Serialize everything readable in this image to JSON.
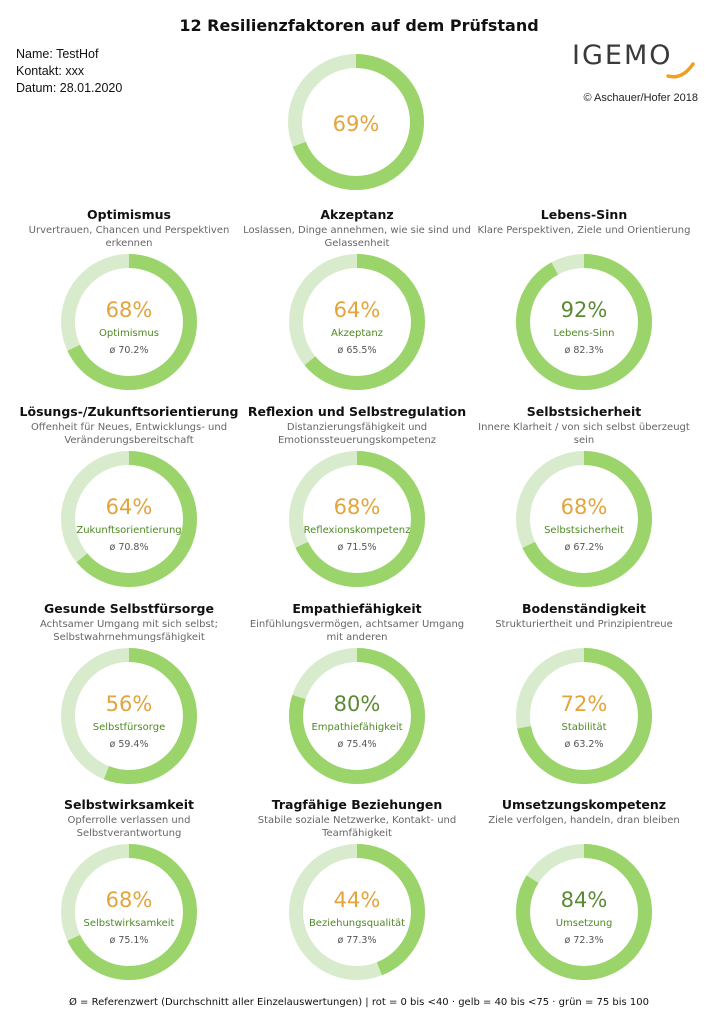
{
  "title": "12 Resilienzfaktoren auf dem Prüfstand",
  "meta": {
    "name": "Name: TestHof",
    "contact": "Kontakt: xxx",
    "date": "Datum: 28.01.2020"
  },
  "logo_text": "IGEMO",
  "copyright": "© Aschauer/Hofer 2018",
  "footer": "Ø = Referenzwert (Durchschnitt aller Einzelauswertungen) | rot = 0 bis <40 · gelb = 40 bis <75 · grün = 75 bis 100",
  "colors": {
    "ring_fill": "#9bd46a",
    "ring_track": "#d8eccd",
    "yellow": "#e2a43c",
    "green_text": "#5a8a36",
    "label_green": "#4e8a22",
    "avg_gray": "#555555"
  },
  "chart_data": {
    "type": "donut",
    "overall": {
      "label": "69%",
      "value": 69,
      "status": "yellow"
    },
    "factors": [
      {
        "title": "Optimismus",
        "description": "Urvertrauen, Chancen und Perspektiven erkennen",
        "value": 68,
        "label": "68%",
        "short": "Optimismus",
        "avg": "ø 70.2%",
        "status": "yellow"
      },
      {
        "title": "Akzeptanz",
        "description": "Loslassen, Dinge annehmen, wie sie sind und Gelassenheit",
        "value": 64,
        "label": "64%",
        "short": "Akzeptanz",
        "avg": "ø 65.5%",
        "status": "yellow"
      },
      {
        "title": "Lebens-Sinn",
        "description": "Klare Perspektiven, Ziele und Orientierung",
        "value": 92,
        "label": "92%",
        "short": "Lebens-Sinn",
        "avg": "ø 82.3%",
        "status": "green"
      },
      {
        "title": "Lösungs-/Zukunftsorientierung",
        "description": "Offenheit für Neues, Entwicklungs- und Veränderungsbereitschaft",
        "value": 64,
        "label": "64%",
        "short": "Zukunftsorientierung",
        "avg": "ø 70.8%",
        "status": "yellow"
      },
      {
        "title": "Reflexion und Selbstregulation",
        "description": "Distanzierungsfähigkeit und Emotionssteuerungskompetenz",
        "value": 68,
        "label": "68%",
        "short": "Reflexionskompetenz",
        "avg": "ø 71.5%",
        "status": "yellow"
      },
      {
        "title": "Selbstsicherheit",
        "description": "Innere Klarheit / von sich selbst überzeugt sein",
        "value": 68,
        "label": "68%",
        "short": "Selbstsicherheit",
        "avg": "ø 67.2%",
        "status": "yellow"
      },
      {
        "title": "Gesunde Selbstfürsorge",
        "description": "Achtsamer Umgang mit sich selbst; Selbstwahrnehmungsfähigkeit",
        "value": 56,
        "label": "56%",
        "short": "Selbstfürsorge",
        "avg": "ø 59.4%",
        "status": "yellow"
      },
      {
        "title": "Empathiefähigkeit",
        "description": "Einfühlungsvermögen, achtsamer Umgang mit anderen",
        "value": 80,
        "label": "80%",
        "short": "Empathiefähigkeit",
        "avg": "ø 75.4%",
        "status": "green"
      },
      {
        "title": "Bodenständigkeit",
        "description": "Strukturiertheit und Prinzipientreue",
        "value": 72,
        "label": "72%",
        "short": "Stabilität",
        "avg": "ø 63.2%",
        "status": "yellow"
      },
      {
        "title": "Selbstwirksamkeit",
        "description": "Opferrolle verlassen und Selbstverantwortung",
        "value": 68,
        "label": "68%",
        "short": "Selbstwirksamkeit",
        "avg": "ø 75.1%",
        "status": "yellow"
      },
      {
        "title": "Tragfähige Beziehungen",
        "description": "Stabile soziale Netzwerke, Kontakt- und Teamfähigkeit",
        "value": 44,
        "label": "44%",
        "short": "Beziehungsqualität",
        "avg": "ø 77.3%",
        "status": "yellow"
      },
      {
        "title": "Umsetzungskompetenz",
        "description": "Ziele verfolgen, handeln, dran bleiben",
        "value": 84,
        "label": "84%",
        "short": "Umsetzung",
        "avg": "ø 72.3%",
        "status": "green"
      }
    ]
  }
}
